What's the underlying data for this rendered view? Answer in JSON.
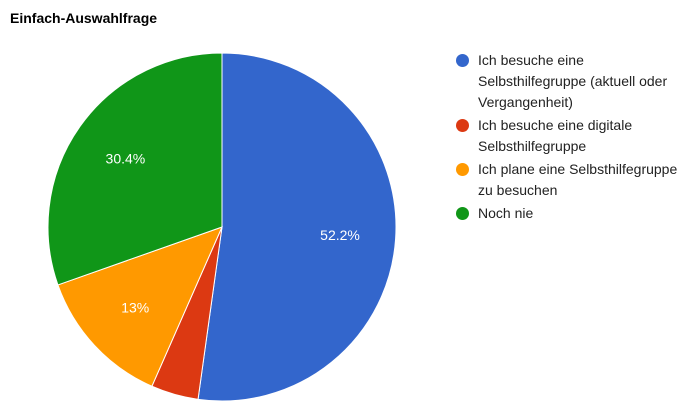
{
  "chart_data": {
    "type": "pie",
    "title": "Einfach-Auswahlfrage",
    "categories": [
      "Ich besuche eine Selbsthilfegruppe (aktuell oder Vergangenheit)",
      "Ich besuche eine digitale Selbsthilfegruppe",
      "Ich plane eine Selbsthilfegruppe zu besuchen",
      "Noch nie"
    ],
    "values": [
      52.2,
      4.4,
      13,
      30.4
    ],
    "data_labels": [
      "52.2%",
      "",
      "13%",
      "30.4%"
    ],
    "colors": [
      "#3366cc",
      "#dc3912",
      "#ff9900",
      "#109618"
    ],
    "legend_position": "right"
  }
}
